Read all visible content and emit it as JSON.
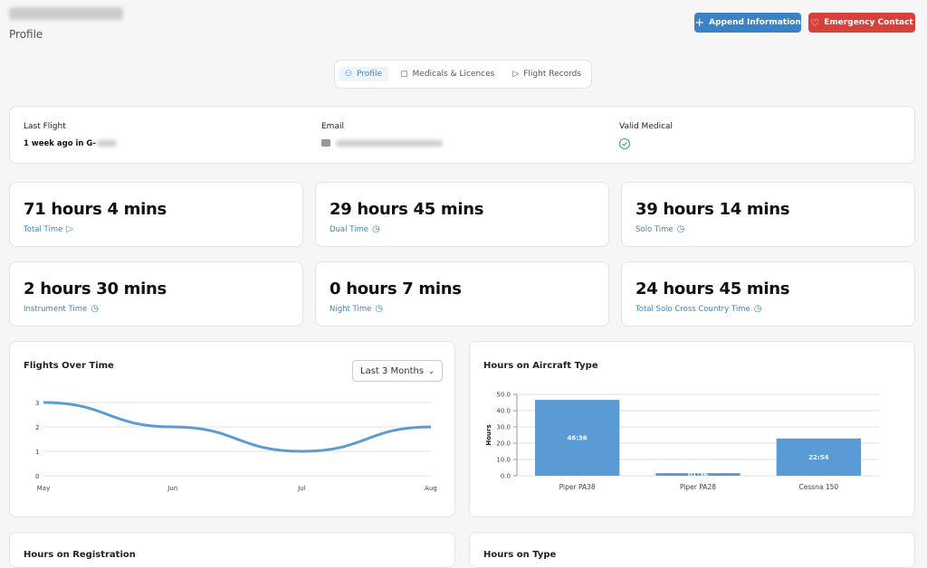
{
  "header": {
    "title": "Profile",
    "buttons": [
      "Append Information",
      "Emergency Contact"
    ]
  },
  "tabs": [
    "Profile",
    "Medicals & Licences",
    "Flight Records"
  ],
  "info": {
    "last_flight_label": "Last Flight",
    "last_flight": "1 week ago in G-",
    "email_label": "Email",
    "medical_label": "Valid Medical"
  },
  "stats": [
    {
      "value": "71 hours 4 mins",
      "label": "Total Time"
    },
    {
      "value": "29 hours 45 mins",
      "label": "Dual Time"
    },
    {
      "value": "39 hours 14 mins",
      "label": "Solo Time"
    },
    {
      "value": "2 hours 30 mins",
      "label": "Instrument Time"
    },
    {
      "value": "0 hours 7 mins",
      "label": "Night Time"
    },
    {
      "value": "24 hours 45 mins",
      "label": "Total Solo Cross Country Time"
    }
  ],
  "charts": [
    {
      "type": "line",
      "title": "Flights Over Time",
      "range_select": "Last 3 Months",
      "categories": [
        "May",
        "Jun",
        "Jul",
        "Aug"
      ],
      "values": [
        3,
        2,
        1,
        2
      ],
      "ylim": [
        0,
        3
      ],
      "yticks": [
        0,
        1,
        2,
        3
      ],
      "grid": true,
      "color": "#5b9bd5"
    },
    {
      "type": "bar",
      "title": "Hours on Aircraft Type",
      "y_label": "Hours",
      "categories": [
        "Piper PA38",
        "Piper PA28",
        "Cessna 150"
      ],
      "values": [
        46.6,
        1.6,
        22.9
      ],
      "value_labels": [
        "46:36",
        "01:36",
        "22:54"
      ],
      "ylim": [
        0,
        50
      ],
      "yticks": [
        {
          "value": 0,
          "label": "0.0"
        },
        {
          "value": 10,
          "label": "10.0"
        },
        {
          "value": 20,
          "label": "20.0"
        },
        {
          "value": 30,
          "label": "30.0"
        },
        {
          "value": 40,
          "label": "40.0"
        },
        {
          "value": 50,
          "label": "50.0"
        }
      ],
      "grid": true,
      "color": "#5b9bd5"
    }
  ],
  "lower_cards": [
    "Hours on Registration",
    "Hours on Type"
  ]
}
